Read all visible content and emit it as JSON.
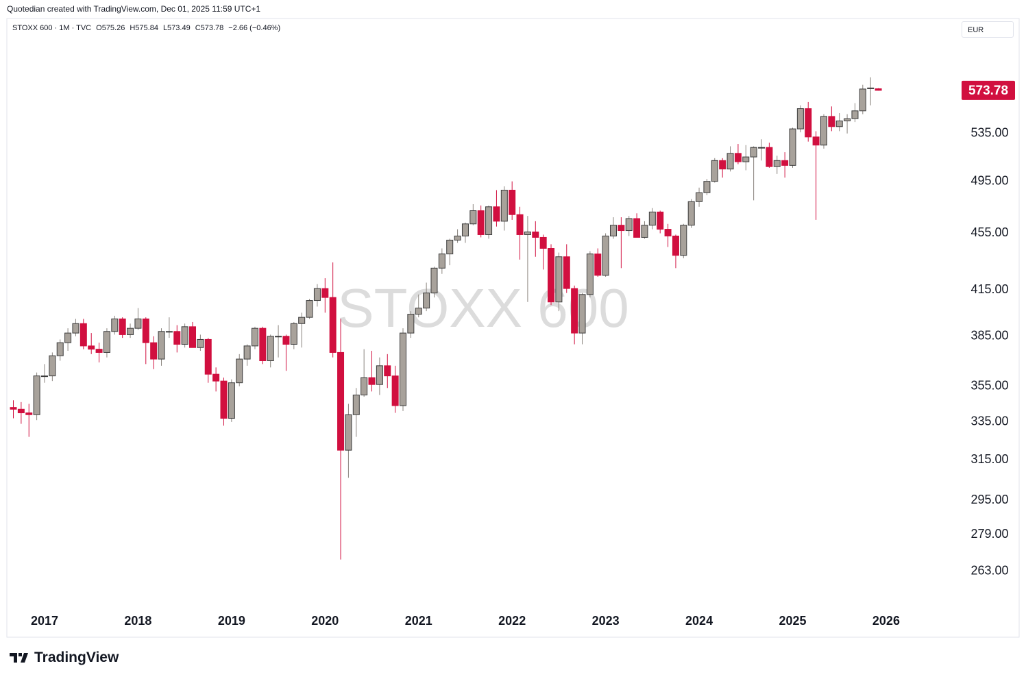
{
  "credit": "Quotedian created with TradingView.com, Dec 01, 2025 11:59 UTC+1",
  "brand": "TradingView",
  "chart_data": {
    "type": "candlestick",
    "legend_items": [
      "STOXX 600 · 1M · TVC",
      "O575.26",
      "H575.84",
      "L573.49",
      "C573.78",
      "−2.66 (−0.46%)"
    ],
    "currency": "EUR",
    "watermark": "STOXX 600",
    "up_color": "#a8a29b",
    "down_color": "#d10f3f",
    "log_scale": true,
    "ylim": [
      247,
      644
    ],
    "yticks": [
      {
        "value": 263,
        "label": "263.00"
      },
      {
        "value": 279,
        "label": "279.00"
      },
      {
        "value": 295,
        "label": "295.00"
      },
      {
        "value": 315,
        "label": "315.00"
      },
      {
        "value": 335,
        "label": "335.00"
      },
      {
        "value": 355,
        "label": "355.00"
      },
      {
        "value": 385,
        "label": "385.00"
      },
      {
        "value": 415,
        "label": "415.00"
      },
      {
        "value": 455,
        "label": "455.00"
      },
      {
        "value": 495,
        "label": "495.00"
      },
      {
        "value": 535,
        "label": "535.00"
      }
    ],
    "xticks": [
      "2017",
      "2018",
      "2019",
      "2020",
      "2021",
      "2022",
      "2023",
      "2024",
      "2025",
      "2026"
    ],
    "open": [
      343,
      342,
      340,
      339,
      361,
      361,
      373,
      381,
      387,
      393,
      379,
      377,
      375,
      388,
      396,
      386,
      390,
      396,
      381,
      371,
      388,
      388,
      380,
      391,
      378,
      383,
      362,
      358,
      337,
      357,
      371,
      379,
      390,
      370,
      385,
      385,
      380,
      393,
      397,
      408,
      416,
      410,
      375,
      320,
      339,
      350,
      360,
      356,
      367,
      361,
      344,
      387,
      399,
      403,
      413,
      430,
      440,
      450,
      453,
      462,
      472,
      454,
      475,
      464,
      488,
      469,
      454,
      456,
      452,
      444,
      407,
      438,
      416,
      387,
      412,
      440,
      425,
      453,
      461,
      457,
      466,
      452,
      461,
      471,
      458,
      453,
      439,
      461,
      479,
      486,
      495,
      512,
      505,
      518,
      511,
      515,
      523,
      523,
      507,
      512,
      508,
      539,
      557,
      532,
      525,
      550,
      541,
      546,
      548,
      555,
      576,
      575.26
    ],
    "high": [
      347,
      346,
      345,
      363,
      368,
      375,
      383,
      390,
      396,
      396,
      387,
      381,
      390,
      398,
      397,
      393,
      403,
      397,
      385,
      390,
      397,
      392,
      393,
      394,
      386,
      384,
      366,
      360,
      359,
      374,
      380,
      391,
      391,
      386,
      392,
      386,
      394,
      400,
      409,
      419,
      423,
      434,
      396,
      345,
      354,
      377,
      376,
      372,
      374,
      367,
      390,
      401,
      412,
      420,
      431,
      444,
      451,
      458,
      463,
      477,
      476,
      476,
      488,
      491,
      495,
      475,
      468,
      464,
      454,
      447,
      441,
      447,
      418,
      413,
      442,
      444,
      455,
      467,
      467,
      468,
      470,
      464,
      474,
      472,
      462,
      454,
      462,
      481,
      490,
      497,
      514,
      514,
      524,
      526,
      525,
      524,
      530,
      527,
      516,
      519,
      540,
      560,
      563,
      537,
      552,
      559,
      553,
      552,
      562,
      579,
      586,
      575.84
    ],
    "low": [
      337,
      334,
      327,
      336,
      357,
      358,
      370,
      376,
      385,
      377,
      374,
      369,
      372,
      386,
      384,
      384,
      389,
      368,
      365,
      367,
      384,
      375,
      378,
      378,
      376,
      357,
      352,
      333,
      335,
      355,
      367,
      377,
      368,
      366,
      372,
      364,
      377,
      378,
      396,
      404,
      400,
      372,
      268,
      306,
      327,
      349,
      352,
      350,
      354,
      340,
      341,
      384,
      397,
      401,
      410,
      426,
      432,
      448,
      448,
      461,
      452,
      451,
      460,
      457,
      465,
      436,
      407,
      438,
      429,
      405,
      401,
      413,
      380,
      380,
      410,
      424,
      424,
      451,
      430,
      453,
      452,
      451,
      458,
      455,
      445,
      430,
      437,
      459,
      475,
      484,
      494,
      498,
      503,
      509,
      504,
      480,
      512,
      506,
      501,
      498,
      506,
      536,
      528,
      465,
      522,
      537,
      537,
      535,
      545,
      552,
      560,
      573.49
    ],
    "close": [
      342,
      340,
      339,
      361,
      361,
      373,
      381,
      387,
      393,
      379,
      377,
      375,
      388,
      396,
      386,
      390,
      396,
      381,
      371,
      388,
      388,
      380,
      391,
      378,
      383,
      362,
      358,
      337,
      357,
      371,
      379,
      390,
      370,
      385,
      385,
      380,
      393,
      397,
      408,
      416,
      410,
      375,
      320,
      339,
      350,
      360,
      356,
      367,
      361,
      344,
      387,
      399,
      403,
      413,
      430,
      440,
      450,
      453,
      462,
      472,
      454,
      475,
      464,
      488,
      469,
      454,
      456,
      452,
      444,
      407,
      438,
      416,
      387,
      412,
      440,
      425,
      453,
      461,
      457,
      466,
      452,
      461,
      471,
      458,
      453,
      439,
      461,
      479,
      486,
      495,
      512,
      505,
      518,
      511,
      515,
      523,
      523,
      507,
      512,
      508,
      539,
      557,
      532,
      525,
      550,
      541,
      546,
      548,
      555,
      575,
      576,
      573.78
    ]
  }
}
